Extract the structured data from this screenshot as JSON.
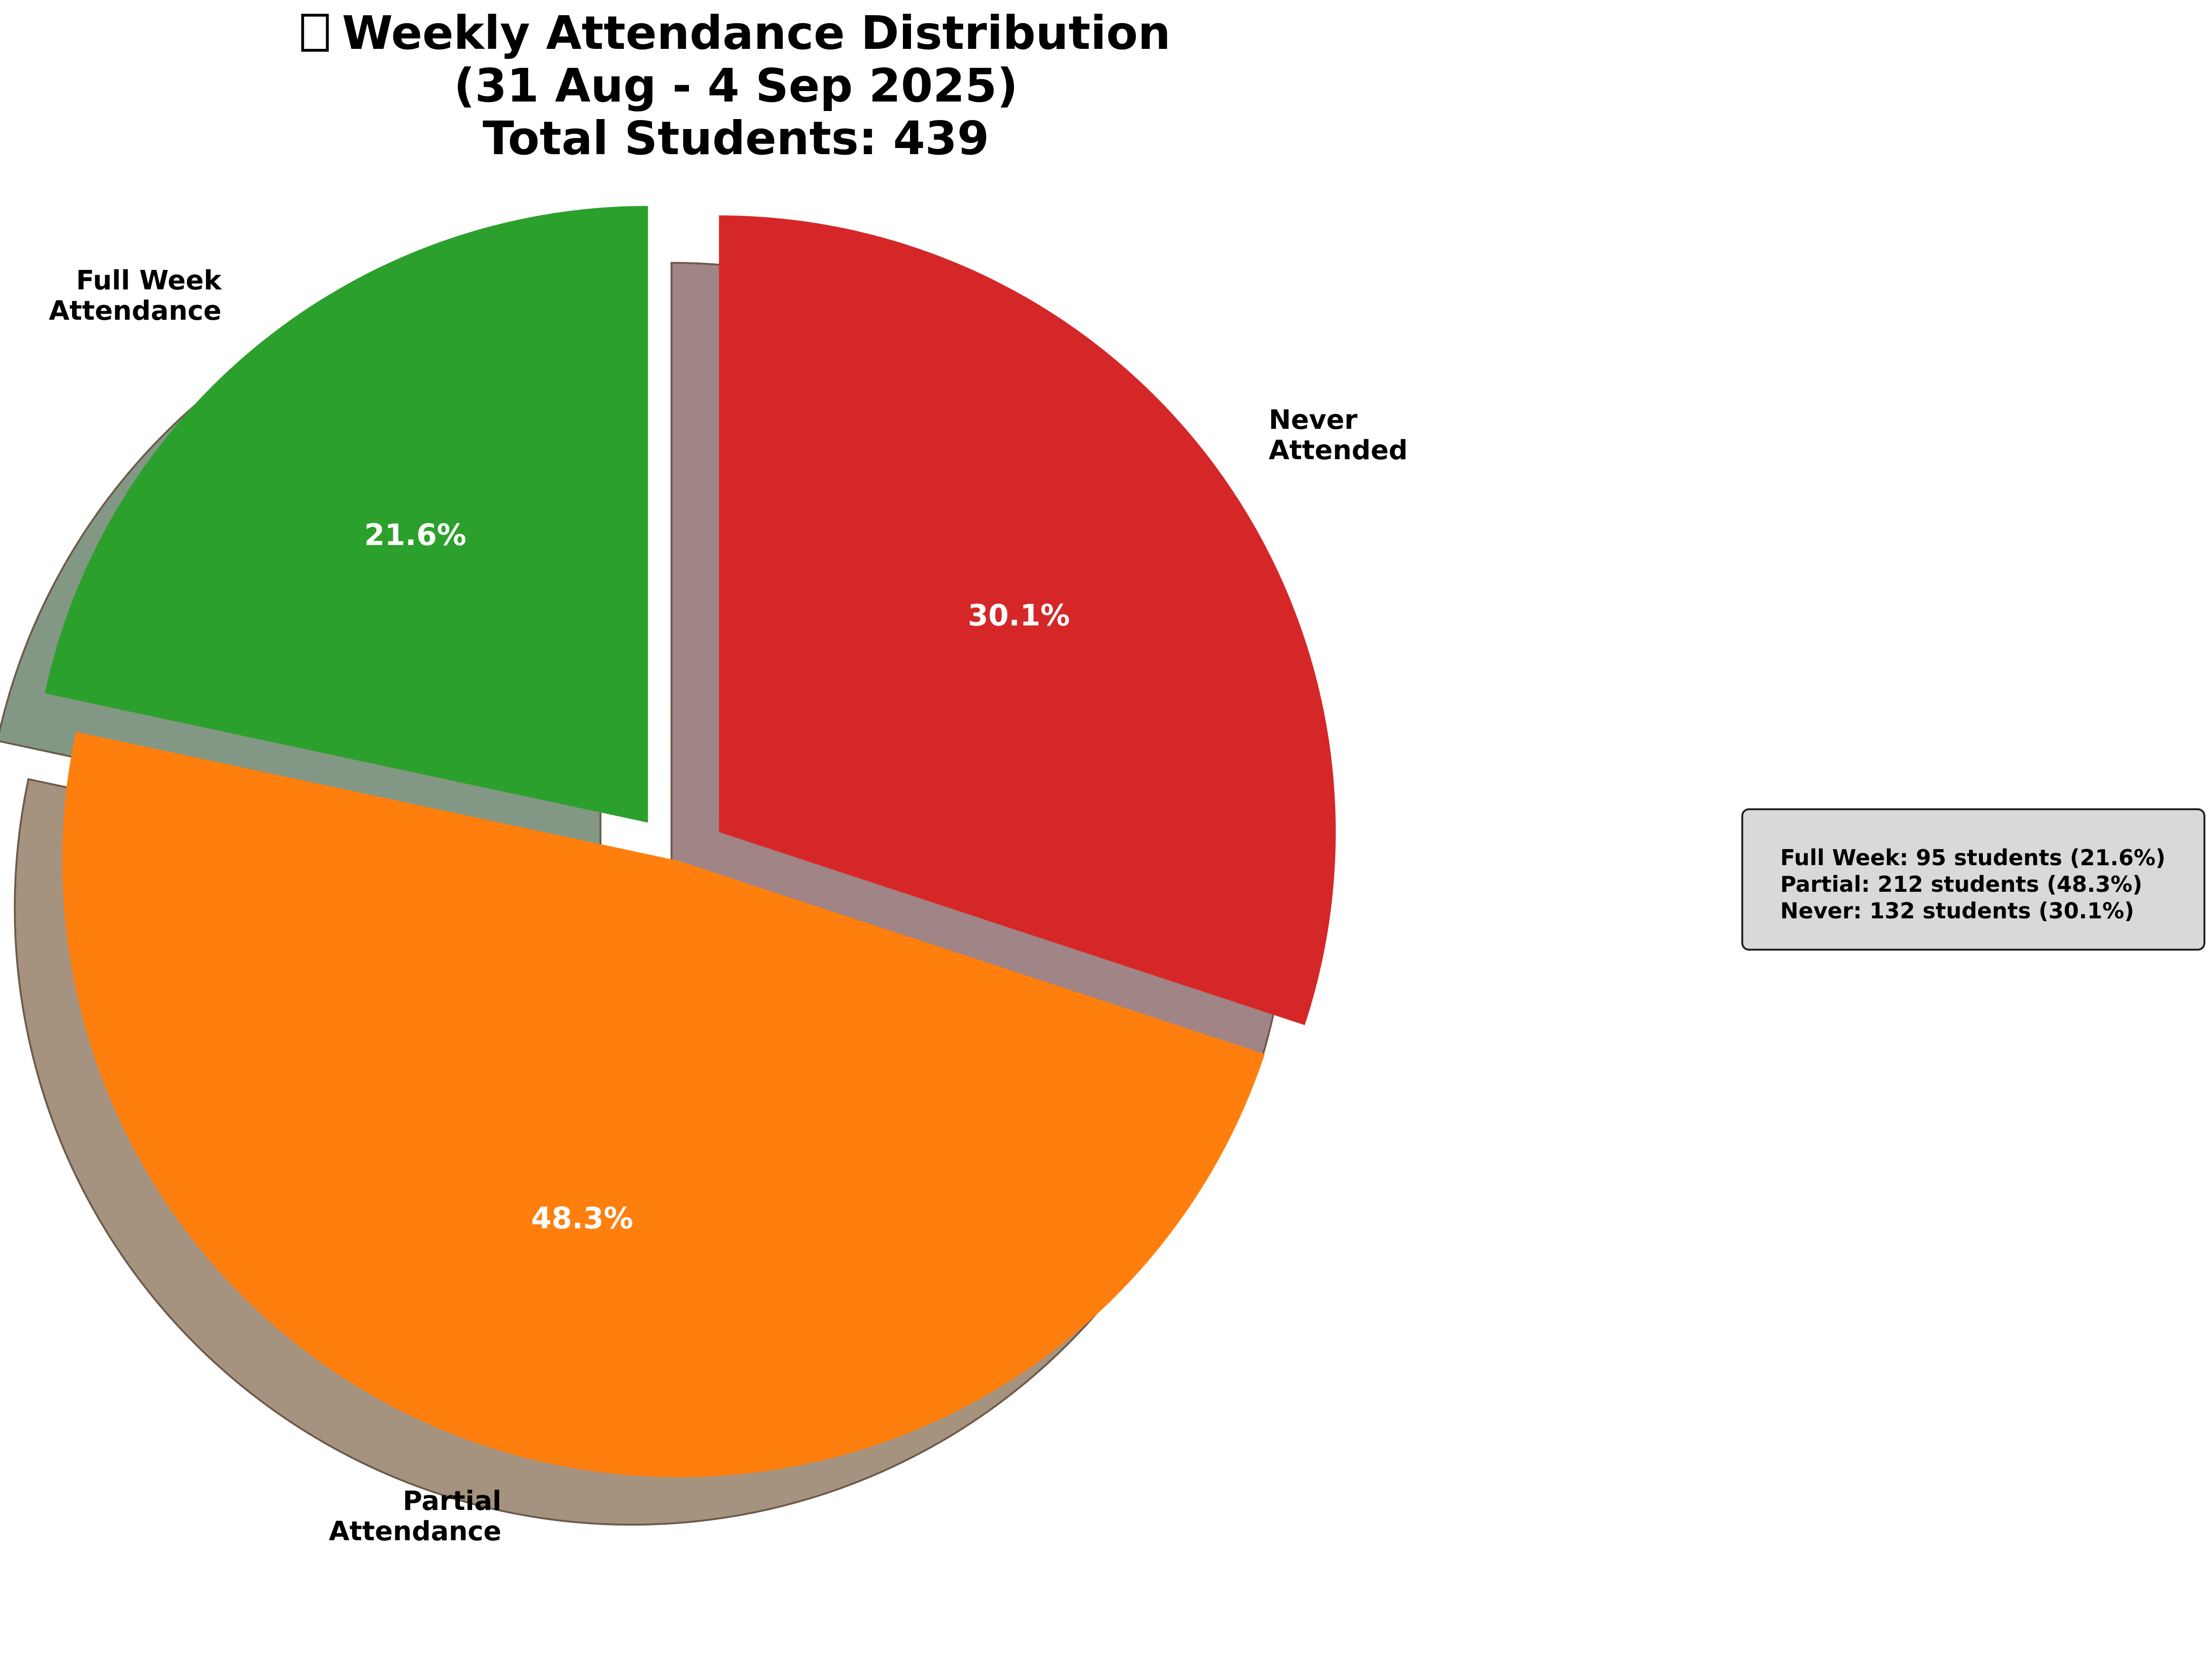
{
  "title": {
    "icon": "chart-icon",
    "line1": "Weekly Attendance Distribution",
    "line2": "(31 Aug - 4 Sep 2025)",
    "line3": "Total Students: 439"
  },
  "summary": {
    "lines": [
      "Full Week: 95 students (21.6%)",
      "Partial: 212 students (48.3%)",
      "Never: 132 students (30.1%)"
    ]
  },
  "chart_data": {
    "type": "pie",
    "title": "Weekly Attendance Distribution (31 Aug - 4 Sep 2025) Total Students: 439",
    "total": 439,
    "start_angle_deg": 90,
    "direction": "counterclockwise",
    "shadow": true,
    "exploded": [
      "Full Week Attendance",
      "Never Attended"
    ],
    "slices": [
      {
        "label_lines": [
          "Full Week",
          "Attendance"
        ],
        "value": 95,
        "percent_label": "21.6%",
        "color": "#2ca02c",
        "shadow_color": "#829884",
        "explode": true
      },
      {
        "label_lines": [
          "Partial",
          "Attendance"
        ],
        "value": 212,
        "percent_label": "48.3%",
        "color": "#ff7f0e",
        "shadow_color": "#a59380",
        "explode": false
      },
      {
        "label_lines": [
          "Never",
          "Attended"
        ],
        "value": 132,
        "percent_label": "30.1%",
        "color": "#d62728",
        "shadow_color": "#a08486",
        "explode": true
      }
    ]
  }
}
